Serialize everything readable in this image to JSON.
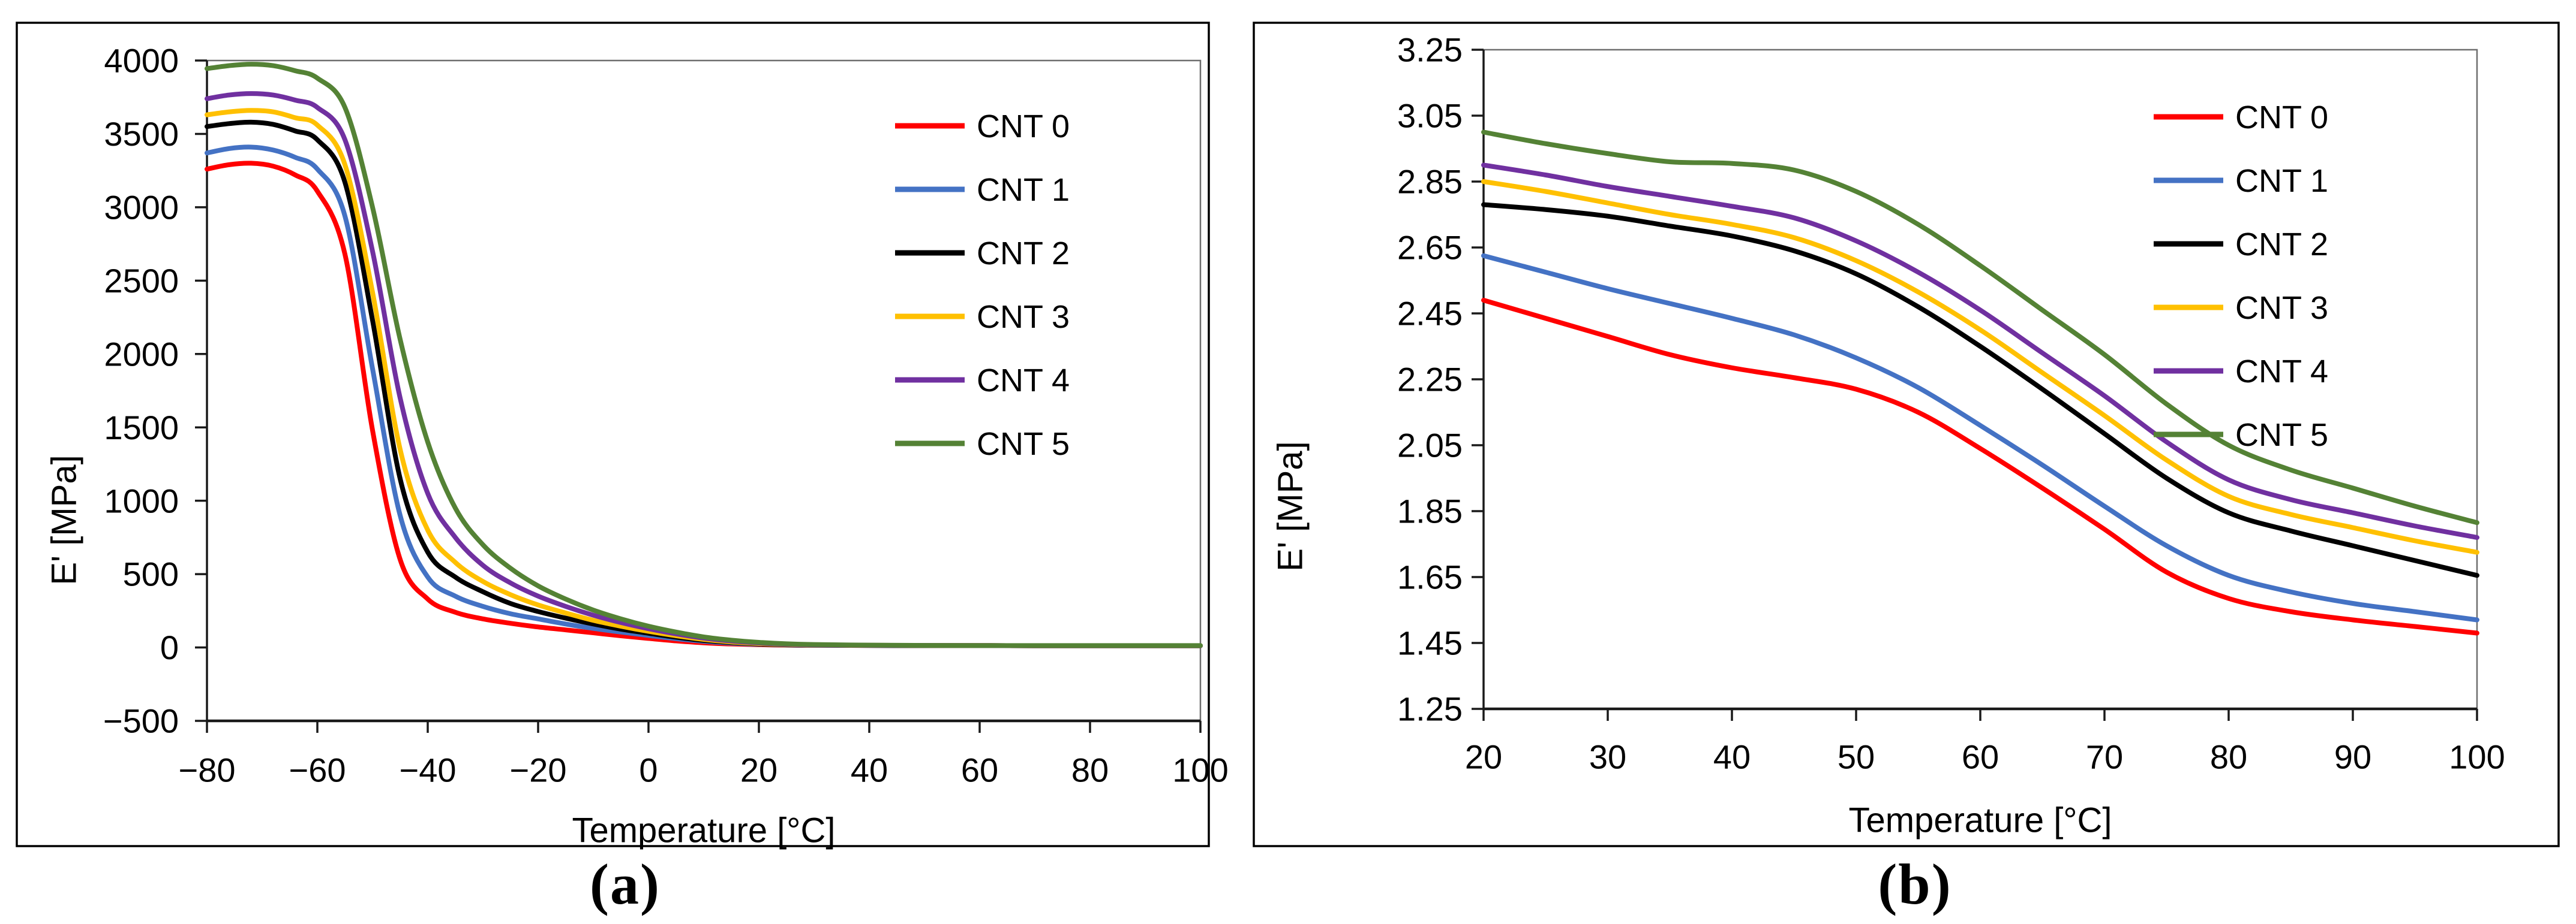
{
  "figure": {
    "background": "#ffffff",
    "panels": [
      {
        "id": "a",
        "label": "(a)"
      },
      {
        "id": "b",
        "label": "(b)"
      }
    ]
  },
  "colors": {
    "panel_border": "#000000",
    "axis": "#1a1a1a",
    "plot_border": "#6e6e6e",
    "text": "#000000",
    "background": "#ffffff"
  },
  "chart_data": [
    {
      "type": "line",
      "panel": "a",
      "title": "",
      "xlabel": "Temperature [°C]",
      "ylabel": "E' [MPa]",
      "xlim": [
        -80,
        100
      ],
      "ylim": [
        -500,
        4000
      ],
      "grid": false,
      "legend_position": "inside upper right",
      "x_ticks": [
        -80,
        -60,
        -40,
        -20,
        0,
        20,
        40,
        60,
        80,
        100
      ],
      "x_tick_labels": [
        "−80",
        "−60",
        "−40",
        "−20",
        "0",
        "20",
        "40",
        "60",
        "80",
        "100"
      ],
      "y_ticks": [
        -500,
        0,
        500,
        1000,
        1500,
        2000,
        2500,
        3000,
        3500,
        4000
      ],
      "y_tick_labels": [
        "−500",
        "0",
        "500",
        "1000",
        "1500",
        "2000",
        "2500",
        "3000",
        "3500",
        "4000"
      ],
      "x": [
        -80,
        -76,
        -72,
        -68,
        -64,
        -60,
        -55,
        -50,
        -45,
        -40,
        -35,
        -30,
        -25,
        -20,
        -15,
        -10,
        -5,
        0,
        5,
        10,
        15,
        20,
        25,
        30,
        40,
        50,
        60,
        70,
        80,
        90,
        100
      ],
      "series": [
        {
          "name": "CNT 0",
          "color": "#FF0000",
          "values": [
            3260,
            3290,
            3300,
            3280,
            3220,
            3110,
            2680,
            1480,
            600,
            330,
            240,
            195,
            165,
            140,
            120,
            100,
            80,
            62,
            45,
            32,
            24,
            19,
            16,
            15,
            14,
            13,
            13,
            12,
            12,
            12,
            12
          ]
        },
        {
          "name": "CNT 1",
          "color": "#4472C4",
          "values": [
            3370,
            3400,
            3410,
            3390,
            3340,
            3260,
            2940,
            1900,
            900,
            480,
            350,
            280,
            230,
            195,
            160,
            130,
            105,
            82,
            60,
            42,
            30,
            22,
            17,
            15,
            14,
            13,
            13,
            12,
            12,
            12,
            12
          ]
        },
        {
          "name": "CNT 2",
          "color": "#000000",
          "values": [
            3550,
            3570,
            3580,
            3565,
            3520,
            3460,
            3170,
            2230,
            1150,
            650,
            480,
            380,
            300,
            245,
            200,
            160,
            125,
            97,
            70,
            48,
            34,
            24,
            18,
            16,
            14,
            13,
            13,
            12,
            12,
            12,
            12
          ]
        },
        {
          "name": "CNT 3",
          "color": "#FFC000",
          "values": [
            3630,
            3650,
            3660,
            3650,
            3610,
            3560,
            3290,
            2420,
            1350,
            800,
            580,
            450,
            360,
            290,
            235,
            185,
            145,
            110,
            80,
            55,
            38,
            27,
            20,
            17,
            15,
            14,
            13,
            12,
            12,
            12,
            12
          ]
        },
        {
          "name": "CNT 4",
          "color": "#7030A0",
          "values": [
            3740,
            3765,
            3775,
            3765,
            3730,
            3680,
            3460,
            2700,
            1700,
            1050,
            750,
            560,
            440,
            350,
            280,
            220,
            170,
            128,
            93,
            64,
            44,
            31,
            22,
            18,
            15,
            14,
            13,
            12,
            12,
            12,
            12
          ]
        },
        {
          "name": "CNT 5",
          "color": "#548235",
          "values": [
            3945,
            3965,
            3975,
            3965,
            3930,
            3880,
            3680,
            3000,
            2100,
            1400,
            950,
            700,
            540,
            420,
            330,
            255,
            195,
            145,
            105,
            72,
            50,
            35,
            25,
            20,
            16,
            14,
            13,
            13,
            13,
            13,
            13
          ]
        }
      ]
    },
    {
      "type": "line",
      "panel": "b",
      "title": "",
      "xlabel": "Temperature [°C]",
      "ylabel": "E' [MPa]",
      "xlim": [
        20,
        100
      ],
      "ylim": [
        1.25,
        3.25
      ],
      "grid": false,
      "legend_position": "inside upper right",
      "x_ticks": [
        20,
        30,
        40,
        50,
        60,
        70,
        80,
        90,
        100
      ],
      "x_tick_labels": [
        "20",
        "30",
        "40",
        "50",
        "60",
        "70",
        "80",
        "90",
        "100"
      ],
      "y_ticks": [
        1.25,
        1.45,
        1.65,
        1.85,
        2.05,
        2.25,
        2.45,
        2.65,
        2.85,
        3.05,
        3.25
      ],
      "y_tick_labels": [
        "1.25",
        "1.45",
        "1.65",
        "1.85",
        "2.05",
        "2.25",
        "2.45",
        "2.65",
        "2.85",
        "3.05",
        "3.25"
      ],
      "x": [
        20,
        25,
        30,
        35,
        40,
        45,
        50,
        55,
        60,
        65,
        70,
        75,
        80,
        85,
        90,
        95,
        100
      ],
      "series": [
        {
          "name": "CNT 0",
          "color": "#FF0000",
          "values": [
            2.49,
            2.435,
            2.38,
            2.325,
            2.285,
            2.255,
            2.22,
            2.15,
            2.04,
            1.92,
            1.795,
            1.665,
            1.585,
            1.545,
            1.52,
            1.5,
            1.48
          ]
        },
        {
          "name": "CNT 1",
          "color": "#4472C4",
          "values": [
            2.625,
            2.575,
            2.525,
            2.48,
            2.435,
            2.385,
            2.315,
            2.225,
            2.11,
            1.99,
            1.865,
            1.745,
            1.655,
            1.605,
            1.57,
            1.545,
            1.52
          ]
        },
        {
          "name": "CNT 2",
          "color": "#000000",
          "values": [
            2.78,
            2.765,
            2.745,
            2.715,
            2.685,
            2.64,
            2.57,
            2.47,
            2.35,
            2.22,
            2.085,
            1.95,
            1.845,
            1.79,
            1.745,
            1.7,
            1.655
          ]
        },
        {
          "name": "CNT 3",
          "color": "#FFC000",
          "values": [
            2.85,
            2.82,
            2.785,
            2.75,
            2.72,
            2.68,
            2.61,
            2.515,
            2.4,
            2.27,
            2.14,
            2.005,
            1.895,
            1.84,
            1.8,
            1.76,
            1.725
          ]
        },
        {
          "name": "CNT 4",
          "color": "#7030A0",
          "values": [
            2.9,
            2.87,
            2.835,
            2.805,
            2.775,
            2.74,
            2.67,
            2.575,
            2.46,
            2.33,
            2.2,
            2.06,
            1.945,
            1.885,
            1.845,
            1.805,
            1.77
          ]
        },
        {
          "name": "CNT 5",
          "color": "#548235",
          "values": [
            3.0,
            2.965,
            2.935,
            2.91,
            2.905,
            2.885,
            2.82,
            2.72,
            2.595,
            2.46,
            2.325,
            2.175,
            2.05,
            1.975,
            1.92,
            1.865,
            1.815
          ]
        }
      ]
    }
  ]
}
